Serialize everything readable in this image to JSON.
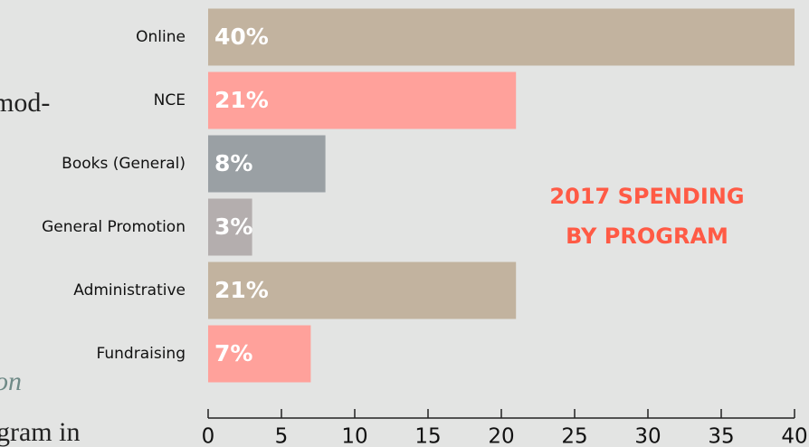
{
  "background_text": [
    "mod-",
    "on",
    "gram in"
  ],
  "chart_data": {
    "type": "bar",
    "orientation": "horizontal",
    "title": "2017 SPENDING BY PROGRAM",
    "categories": [
      "Online",
      "NCE",
      "Books (General)",
      "General Promotion",
      "Administrative",
      "Fundraising"
    ],
    "values": [
      40,
      21,
      8,
      3,
      21,
      7
    ],
    "value_labels": [
      "40%",
      "21%",
      "8%",
      "3%",
      "21%",
      "7%"
    ],
    "colors": [
      "#c2b39f",
      "#ffa19b",
      "#9aa0a4",
      "#b4aeae",
      "#c2b39f",
      "#ffa19b"
    ],
    "xlim": [
      0,
      40
    ],
    "xticks": [
      0,
      5,
      10,
      15,
      20,
      25,
      30,
      35,
      40
    ],
    "grid": false
  }
}
